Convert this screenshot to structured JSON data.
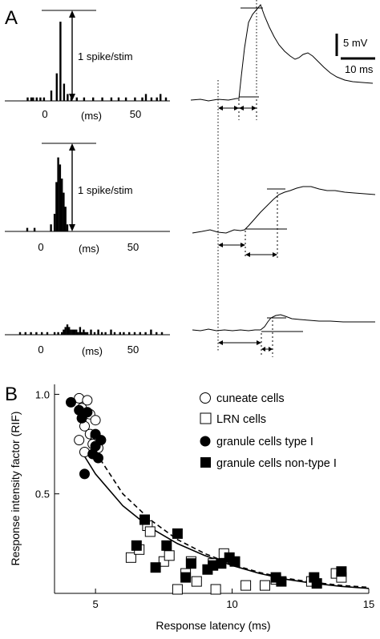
{
  "panels": {
    "a_label": "A",
    "b_label": "B"
  },
  "histograms": {
    "x_ticks": [
      "0",
      "50"
    ],
    "unit_label": "(ms)",
    "scale_label": "1 spike/stim",
    "rows": [
      {
        "bins": [
          [
            -10,
            1
          ],
          [
            -8,
            1
          ],
          [
            -7,
            1
          ],
          [
            -5,
            1
          ],
          [
            -3,
            1
          ],
          [
            -1,
            1
          ],
          [
            3,
            3
          ],
          [
            6,
            8
          ],
          [
            8,
            23
          ],
          [
            10,
            5
          ],
          [
            12,
            2
          ],
          [
            14,
            1
          ],
          [
            17,
            1
          ],
          [
            21,
            1
          ],
          [
            26,
            1
          ],
          [
            31,
            1
          ],
          [
            36,
            1
          ],
          [
            40,
            1
          ],
          [
            44,
            1
          ],
          [
            49,
            1
          ],
          [
            53,
            1
          ],
          [
            55,
            2
          ],
          [
            58,
            1
          ],
          [
            61,
            1
          ],
          [
            63,
            2
          ],
          [
            66,
            1
          ]
        ]
      },
      {
        "bins": [
          [
            -8,
            1
          ],
          [
            -4,
            1
          ],
          [
            5,
            2
          ],
          [
            7,
            5
          ],
          [
            8,
            14
          ],
          [
            9,
            21
          ],
          [
            10,
            19
          ],
          [
            11,
            15
          ],
          [
            12,
            11
          ],
          [
            13,
            7
          ],
          [
            14,
            2
          ]
        ]
      },
      {
        "bins": [
          [
            -12,
            1
          ],
          [
            -9,
            1
          ],
          [
            -6,
            1
          ],
          [
            -3,
            1
          ],
          [
            0,
            1
          ],
          [
            3,
            1
          ],
          [
            7,
            1
          ],
          [
            9,
            1
          ],
          [
            11,
            1
          ],
          [
            12,
            2
          ],
          [
            13,
            3
          ],
          [
            14,
            4
          ],
          [
            15,
            3
          ],
          [
            16,
            2
          ],
          [
            17,
            2
          ],
          [
            18,
            2
          ],
          [
            19,
            2
          ],
          [
            20,
            1
          ],
          [
            21,
            3
          ],
          [
            22,
            1
          ],
          [
            23,
            2
          ],
          [
            24,
            1
          ],
          [
            25,
            1
          ],
          [
            27,
            2
          ],
          [
            29,
            1
          ],
          [
            31,
            2
          ],
          [
            33,
            1
          ],
          [
            35,
            1
          ],
          [
            38,
            2
          ],
          [
            40,
            1
          ],
          [
            43,
            1
          ],
          [
            45,
            1
          ],
          [
            48,
            1
          ],
          [
            51,
            1
          ],
          [
            54,
            1
          ],
          [
            57,
            1
          ],
          [
            60,
            2
          ],
          [
            63,
            1
          ],
          [
            66,
            1
          ]
        ]
      }
    ]
  },
  "traces": {
    "scale_mv": "5 mV",
    "scale_ms": "10 ms"
  },
  "chart_data": {
    "type": "scatter",
    "xlabel": "Response latency (ms)",
    "ylabel": "Response intensity factor (RIF)",
    "xlim": [
      3.5,
      15
    ],
    "ylim": [
      0,
      1.05
    ],
    "x_ticks": [
      5,
      10,
      15
    ],
    "y_ticks": [
      0.5,
      1.0
    ],
    "y_tick_labels": [
      "0.5",
      "1.0"
    ],
    "legend_position": "top-right",
    "series": [
      {
        "name": "cuneate cells",
        "marker": "open-circle",
        "points": [
          [
            4.4,
            0.98
          ],
          [
            4.7,
            0.97
          ],
          [
            4.5,
            0.93
          ],
          [
            4.8,
            0.9
          ],
          [
            5.0,
            0.87
          ],
          [
            4.6,
            0.84
          ],
          [
            4.8,
            0.8
          ],
          [
            5.0,
            0.79
          ],
          [
            4.9,
            0.75
          ],
          [
            4.4,
            0.77
          ],
          [
            5.1,
            0.73
          ],
          [
            4.6,
            0.71
          ]
        ]
      },
      {
        "name": "LRN cells",
        "marker": "open-square",
        "points": [
          [
            6.3,
            0.18
          ],
          [
            6.9,
            0.34
          ],
          [
            6.6,
            0.22
          ],
          [
            7.0,
            0.31
          ],
          [
            7.5,
            0.16
          ],
          [
            7.7,
            0.19
          ],
          [
            8.0,
            0.02
          ],
          [
            8.3,
            0.1
          ],
          [
            8.5,
            0.16
          ],
          [
            8.7,
            0.06
          ],
          [
            9.3,
            0.15
          ],
          [
            9.4,
            0.02
          ],
          [
            9.7,
            0.2
          ],
          [
            10.5,
            0.04
          ],
          [
            11.2,
            0.04
          ],
          [
            11.6,
            0.07
          ],
          [
            12.9,
            0.06
          ],
          [
            13.8,
            0.1
          ],
          [
            14.0,
            0.08
          ]
        ]
      },
      {
        "name": "granule cells type I",
        "marker": "filled-circle",
        "points": [
          [
            4.1,
            0.96
          ],
          [
            4.4,
            0.92
          ],
          [
            4.5,
            0.88
          ],
          [
            4.7,
            0.91
          ],
          [
            5.0,
            0.8
          ],
          [
            5.2,
            0.77
          ],
          [
            4.9,
            0.7
          ],
          [
            5.1,
            0.68
          ],
          [
            4.6,
            0.6
          ],
          [
            5.0,
            0.74
          ]
        ]
      },
      {
        "name": "granule cells non-type I",
        "marker": "filled-square",
        "points": [
          [
            6.5,
            0.24
          ],
          [
            6.8,
            0.37
          ],
          [
            7.2,
            0.13
          ],
          [
            7.6,
            0.24
          ],
          [
            8.0,
            0.3
          ],
          [
            8.3,
            0.08
          ],
          [
            8.5,
            0.15
          ],
          [
            9.1,
            0.12
          ],
          [
            9.3,
            0.14
          ],
          [
            9.6,
            0.15
          ],
          [
            9.9,
            0.18
          ],
          [
            10.1,
            0.16
          ],
          [
            11.6,
            0.08
          ],
          [
            11.8,
            0.06
          ],
          [
            13.0,
            0.08
          ],
          [
            13.1,
            0.05
          ],
          [
            14.0,
            0.11
          ]
        ]
      }
    ],
    "fit_lines": [
      {
        "style": "solid",
        "points": [
          [
            4.5,
            0.71
          ],
          [
            5,
            0.6
          ],
          [
            6,
            0.44
          ],
          [
            7,
            0.33
          ],
          [
            8,
            0.25
          ],
          [
            9,
            0.19
          ],
          [
            10,
            0.14
          ],
          [
            11,
            0.1
          ],
          [
            12,
            0.07
          ],
          [
            13,
            0.05
          ],
          [
            14,
            0.035
          ],
          [
            15,
            0.025
          ]
        ]
      },
      {
        "style": "dashed",
        "points": [
          [
            4.7,
            0.82
          ],
          [
            5,
            0.71
          ],
          [
            6,
            0.5
          ],
          [
            7,
            0.37
          ],
          [
            8,
            0.27
          ],
          [
            9,
            0.2
          ],
          [
            10,
            0.145
          ],
          [
            11,
            0.105
          ],
          [
            12,
            0.075
          ],
          [
            13,
            0.055
          ],
          [
            14,
            0.04
          ],
          [
            15,
            0.03
          ]
        ]
      }
    ]
  }
}
